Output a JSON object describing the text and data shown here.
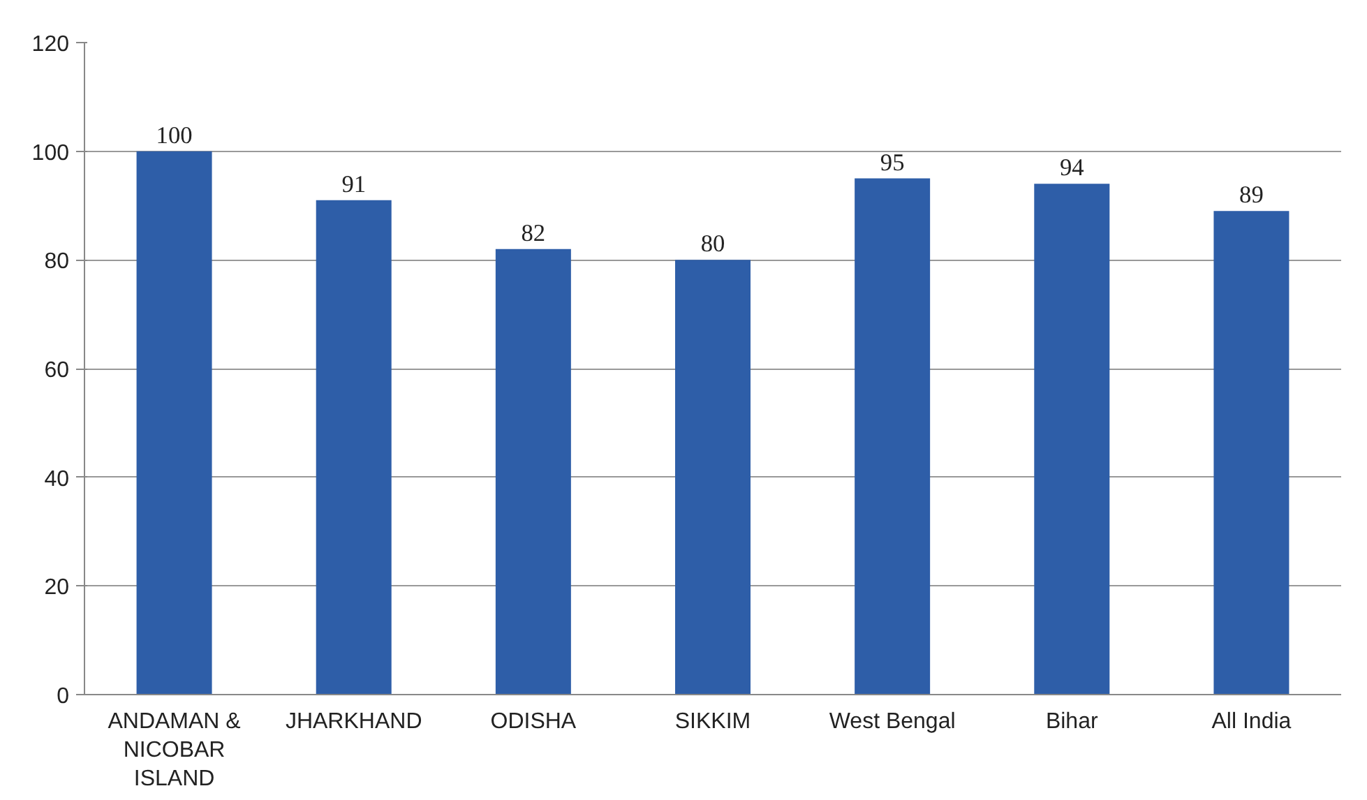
{
  "chart_data": {
    "type": "bar",
    "categories": [
      "ANDAMAN & NICOBAR ISLAND",
      "JHARKHAND",
      "ODISHA",
      "SIKKIM",
      "West Bengal",
      "Bihar",
      "All India"
    ],
    "values": [
      100,
      91,
      82,
      80,
      95,
      94,
      89
    ],
    "color": "#2e5ea8",
    "ylim": [
      0,
      120
    ],
    "yticks": [
      0,
      20,
      40,
      60,
      80,
      100,
      120
    ],
    "grid": "y",
    "data_labels": true
  }
}
